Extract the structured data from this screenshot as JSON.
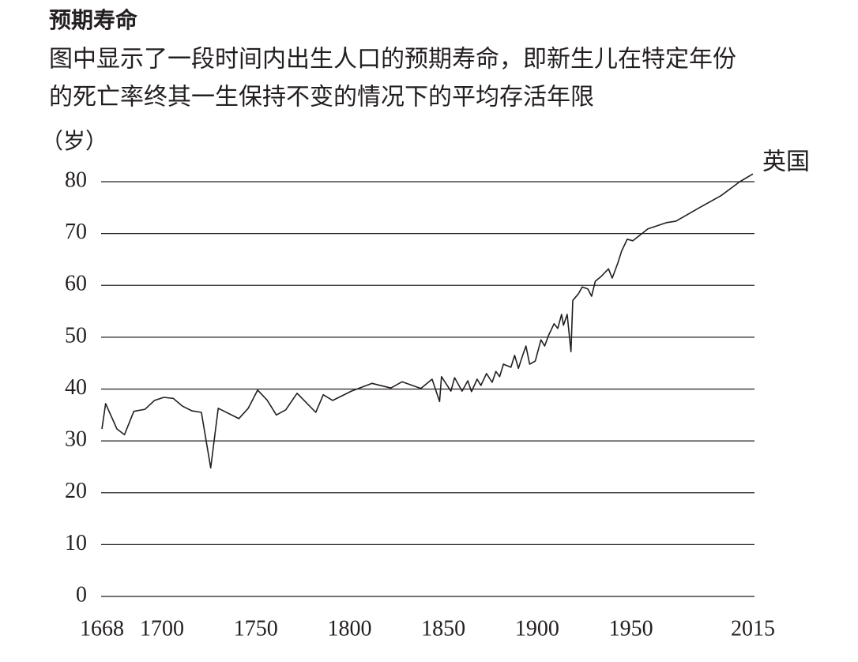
{
  "chart_data": {
    "type": "line",
    "title": "预期寿命",
    "subtitle": [
      "图中显示了一段时间内出生人口的预期寿命，即新生儿在特定年份",
      "的死亡率终其一生保持不变的情况下的平均存活年限"
    ],
    "y_label": "（岁）",
    "x": [
      1668,
      1670,
      1676,
      1680,
      1685,
      1691,
      1696,
      1701,
      1706,
      1711,
      1716,
      1721,
      1726,
      1730,
      1741,
      1746,
      1751,
      1756,
      1761,
      1766,
      1772,
      1782,
      1786,
      1791,
      1801,
      1812,
      1822,
      1828,
      1838,
      1844,
      1848,
      1849,
      1854,
      1856,
      1860,
      1863,
      1865,
      1868,
      1870,
      1873,
      1876,
      1878,
      1880,
      1882,
      1886,
      1888,
      1890,
      1892,
      1894,
      1896,
      1899,
      1902,
      1904,
      1906,
      1909,
      1911,
      1913,
      1914,
      1916,
      1918,
      1919,
      1922,
      1924,
      1927,
      1929,
      1931,
      1934,
      1938,
      1940,
      1943,
      1945,
      1948,
      1951,
      1959,
      1969,
      1974,
      1987,
      1998,
      2008,
      2015
    ],
    "series": [
      {
        "name": "英国",
        "color": "#231f20",
        "values": [
          32.3,
          37.2,
          32.3,
          31.2,
          35.7,
          36.1,
          37.8,
          38.4,
          38.2,
          36.7,
          35.8,
          35.5,
          24.8,
          36.3,
          34.3,
          36.3,
          39.8,
          37.9,
          35.0,
          36.0,
          39.2,
          35.5,
          38.9,
          37.8,
          39.6,
          41.1,
          40.2,
          41.4,
          40.1,
          41.9,
          37.6,
          42.4,
          39.6,
          42.2,
          39.6,
          41.6,
          39.5,
          41.9,
          40.7,
          43.0,
          41.3,
          43.4,
          42.4,
          44.8,
          44.2,
          46.5,
          44.0,
          46.2,
          48.3,
          44.8,
          45.4,
          49.5,
          48.3,
          50.3,
          52.6,
          51.7,
          54.4,
          52.3,
          54.4,
          47.2,
          57.1,
          58.4,
          59.7,
          59.3,
          57.9,
          60.8,
          61.7,
          63.2,
          61.4,
          64.3,
          66.6,
          68.9,
          68.6,
          70.9,
          72.1,
          72.4,
          75.1,
          77.3,
          80.0,
          81.5
        ]
      }
    ],
    "xlim": [
      1668,
      2015
    ],
    "xticks": [
      1668,
      1700,
      1750,
      1800,
      1850,
      1900,
      1950,
      2015
    ],
    "ylim": [
      0,
      80
    ],
    "yticks": [
      0,
      10,
      20,
      30,
      40,
      50,
      60,
      70,
      80
    ],
    "grid": true
  }
}
